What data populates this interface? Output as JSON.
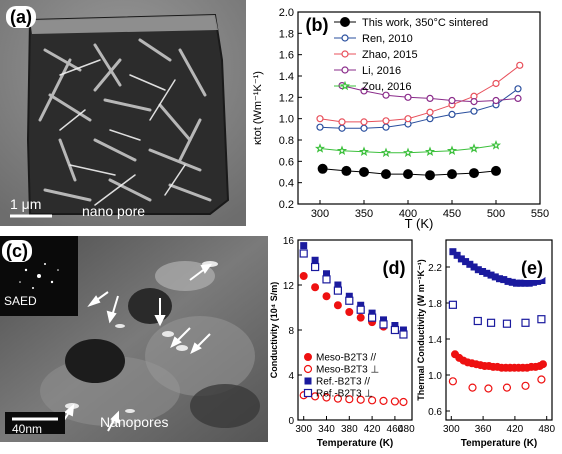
{
  "panels": {
    "a": {
      "label": "(a)",
      "scale_bar": "1 μm",
      "caption": "nano pore"
    },
    "c": {
      "label": "(c)",
      "inset": "SAED",
      "scale_bar": "40nm",
      "caption": "Nanopores"
    }
  },
  "chart_data": [
    {
      "id": "b",
      "panel_label": "(b)",
      "type": "line",
      "xlabel": "T (K)",
      "ylabel": "κtot (Wm⁻¹K⁻¹)",
      "xlim": [
        275,
        550
      ],
      "ylim": [
        0.2,
        2.0
      ],
      "xticks": [
        300,
        350,
        400,
        450,
        500,
        550
      ],
      "yticks": [
        0.2,
        0.4,
        0.6,
        0.8,
        1.0,
        1.2,
        1.4,
        1.6,
        1.8,
        2.0
      ],
      "legend_position": "top-right",
      "series": [
        {
          "name": "This work, 350°C sintered",
          "color": "#000000",
          "marker": "filled-circle",
          "x": [
            303,
            330,
            350,
            375,
            400,
            425,
            450,
            475,
            500
          ],
          "y": [
            0.53,
            0.51,
            0.5,
            0.48,
            0.48,
            0.47,
            0.48,
            0.49,
            0.51
          ]
        },
        {
          "name": "Ren, 2010",
          "color": "#2a4f9e",
          "marker": "open-circle",
          "x": [
            300,
            325,
            350,
            375,
            400,
            425,
            450,
            475,
            500,
            525
          ],
          "y": [
            0.92,
            0.91,
            0.91,
            0.92,
            0.95,
            1.0,
            1.04,
            1.07,
            1.13,
            1.28
          ]
        },
        {
          "name": "Zhao, 2015",
          "color": "#e8505b",
          "marker": "open-circle",
          "x": [
            300,
            325,
            350,
            375,
            400,
            425,
            450,
            475,
            500,
            527
          ],
          "y": [
            1.0,
            0.97,
            0.97,
            0.98,
            1.0,
            1.06,
            1.13,
            1.21,
            1.33,
            1.5
          ]
        },
        {
          "name": "Li, 2016",
          "color": "#8a2b8a",
          "marker": "open-circle",
          "x": [
            325,
            350,
            375,
            400,
            425,
            450,
            475,
            500,
            525
          ],
          "y": [
            1.31,
            1.26,
            1.22,
            1.2,
            1.19,
            1.17,
            1.16,
            1.17,
            1.19
          ]
        },
        {
          "name": "Zou, 2016",
          "color": "#3cc03c",
          "marker": "open-star",
          "x": [
            300,
            325,
            350,
            375,
            400,
            425,
            450,
            475,
            500
          ],
          "y": [
            0.72,
            0.7,
            0.69,
            0.68,
            0.68,
            0.69,
            0.7,
            0.72,
            0.75
          ]
        }
      ]
    },
    {
      "id": "d",
      "panel_label": "(d)",
      "type": "scatter",
      "xlabel": "Temperature (K)",
      "ylabel": "Conductivity (10⁴ S/m)",
      "xlim": [
        290,
        490
      ],
      "ylim": [
        0,
        16
      ],
      "xticks": [
        300,
        340,
        380,
        420,
        460
      ],
      "xticks_extra_label": "480",
      "yticks": [
        0,
        4,
        8,
        12,
        16
      ],
      "legend_position": "bottom-left",
      "series": [
        {
          "name": "Meso-B2T3 //",
          "color": "#ee1111",
          "marker": "filled-circle",
          "x": [
            300,
            320,
            340,
            360,
            380,
            400,
            420,
            440,
            460,
            475
          ],
          "y": [
            12.8,
            11.8,
            11.0,
            10.2,
            9.6,
            9.1,
            8.7,
            8.3,
            8.0,
            7.6
          ]
        },
        {
          "name": "Meso-B2T3 ⊥",
          "color": "#ee1111",
          "marker": "open-circle",
          "x": [
            300,
            320,
            340,
            360,
            380,
            400,
            420,
            440,
            460,
            475
          ],
          "y": [
            2.2,
            2.1,
            2.0,
            1.9,
            1.85,
            1.8,
            1.75,
            1.7,
            1.65,
            1.6
          ]
        },
        {
          "name": "Ref.-B2T3 //",
          "color": "#1a1a9e",
          "marker": "filled-square",
          "x": [
            300,
            320,
            340,
            360,
            380,
            400,
            420,
            440,
            460,
            475
          ],
          "y": [
            15.5,
            14.2,
            13.0,
            12.0,
            11.0,
            10.2,
            9.5,
            8.9,
            8.4,
            8.0
          ]
        },
        {
          "name": "Ref.-B2T3 ⊥",
          "color": "#1a1a9e",
          "marker": "open-square",
          "x": [
            300,
            320,
            340,
            360,
            380,
            400,
            420,
            440,
            460,
            475
          ],
          "y": [
            14.8,
            13.6,
            12.5,
            11.5,
            10.6,
            9.8,
            9.1,
            8.5,
            8.0,
            7.6
          ]
        }
      ]
    },
    {
      "id": "e",
      "panel_label": "(e)",
      "type": "scatter",
      "xlabel": "Temperature (K)",
      "ylabel": "Thermal Conductivity (W m⁻¹K⁻¹)",
      "xlim": [
        290,
        490
      ],
      "ylim": [
        0.5,
        2.5
      ],
      "xticks": [
        300,
        360,
        420,
        480
      ],
      "yticks": [
        0.6,
        1.0,
        1.4,
        1.8,
        2.2
      ],
      "series": [
        {
          "name": "Ref.-B2T3 //",
          "color": "#1a1a9e",
          "marker": "filled-square",
          "x": [
            303,
            311,
            319,
            327,
            335,
            343,
            351,
            359,
            367,
            375,
            383,
            391,
            399,
            407,
            415,
            423,
            431,
            439,
            447,
            455,
            463,
            471
          ],
          "y": [
            2.37,
            2.33,
            2.29,
            2.26,
            2.23,
            2.2,
            2.17,
            2.15,
            2.13,
            2.11,
            2.09,
            2.07,
            2.06,
            2.04,
            2.03,
            2.02,
            2.02,
            2.02,
            2.02,
            2.03,
            2.04,
            2.05
          ]
        },
        {
          "name": "Ref.-B2T3 ⊥",
          "color": "#1a1a9e",
          "marker": "open-square",
          "x": [
            303,
            350,
            375,
            405,
            440,
            470
          ],
          "y": [
            1.78,
            1.6,
            1.58,
            1.57,
            1.58,
            1.62
          ]
        },
        {
          "name": "Meso-B2T3 //",
          "color": "#ee1111",
          "marker": "filled-circle",
          "x": [
            307,
            315,
            323,
            331,
            339,
            347,
            355,
            363,
            371,
            379,
            387,
            395,
            403,
            411,
            419,
            427,
            435,
            443,
            451,
            459,
            467,
            473
          ],
          "y": [
            1.23,
            1.19,
            1.16,
            1.14,
            1.13,
            1.12,
            1.11,
            1.1,
            1.1,
            1.09,
            1.09,
            1.08,
            1.08,
            1.08,
            1.08,
            1.08,
            1.08,
            1.08,
            1.09,
            1.09,
            1.1,
            1.12
          ]
        },
        {
          "name": "Meso-B2T3 ⊥",
          "color": "#ee1111",
          "marker": "open-circle",
          "x": [
            303,
            340,
            370,
            405,
            440,
            470
          ],
          "y": [
            0.93,
            0.86,
            0.85,
            0.86,
            0.88,
            0.95
          ]
        }
      ]
    }
  ]
}
